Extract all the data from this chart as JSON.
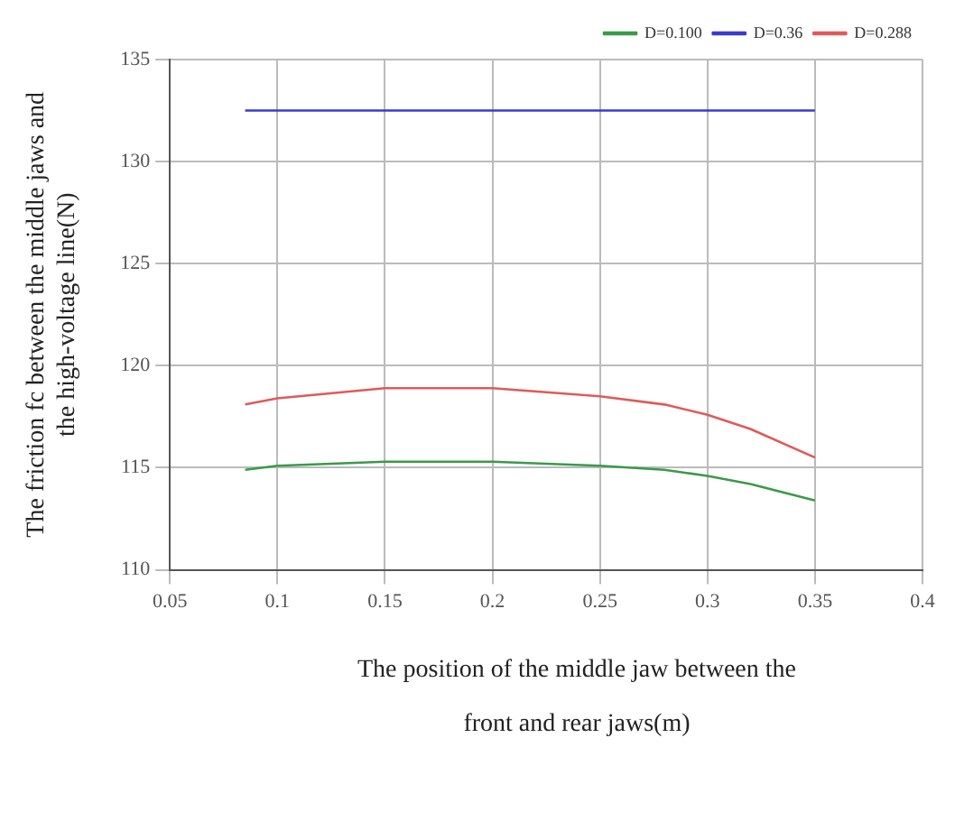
{
  "chart_data": {
    "type": "line",
    "xlabel": "The position of the middle jaw between the\nfront and rear jaws(m)",
    "ylabel": "The friction fc between the middle jaws and\nthe high-voltage line(N)",
    "xlim": [
      0.05,
      0.4
    ],
    "xticks": [
      0.05,
      0.1,
      0.15,
      0.2,
      0.25,
      0.3,
      0.35,
      0.4
    ],
    "ylim": [
      110,
      135
    ],
    "yticks": [
      110,
      115,
      120,
      125,
      130,
      135
    ],
    "grid": true,
    "legend": "top right",
    "marker": "none",
    "line_style": "solid",
    "series": [
      {
        "name": "D=0.100",
        "color": "#3a9a4a",
        "x": [
          0.085,
          0.1,
          0.15,
          0.2,
          0.25,
          0.28,
          0.3,
          0.32,
          0.35
        ],
        "values": [
          114.9,
          115.1,
          115.3,
          115.3,
          115.1,
          114.9,
          114.6,
          114.2,
          113.4
        ]
      },
      {
        "name": "D=0.36",
        "color": "#3a3ad0",
        "x": [
          0.085,
          0.35
        ],
        "values": [
          132.5,
          132.5
        ]
      },
      {
        "name": "D=0.288",
        "color": "#e05a5a",
        "x": [
          0.085,
          0.1,
          0.15,
          0.2,
          0.25,
          0.28,
          0.3,
          0.32,
          0.35
        ],
        "values": [
          118.1,
          118.4,
          118.9,
          118.9,
          118.5,
          118.1,
          117.6,
          116.9,
          115.5
        ]
      }
    ]
  }
}
